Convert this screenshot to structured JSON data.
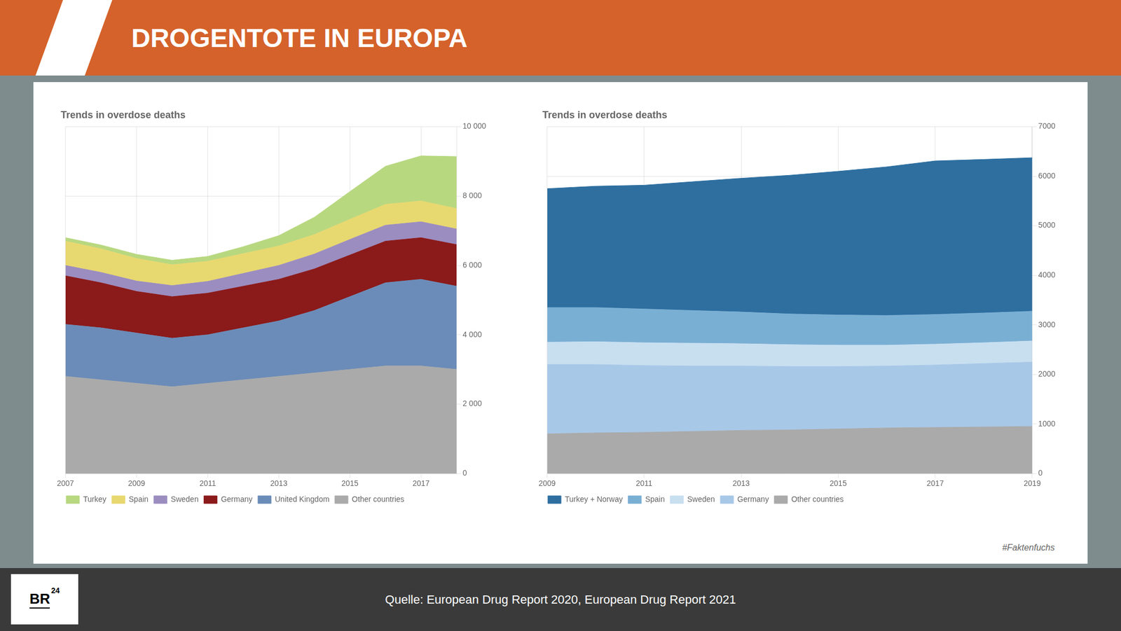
{
  "title": "DROGENTOTE IN EUROPA",
  "annotations": [
    "Quelle: European Drug Report 2020, European Drug Report 2021",
    "BR",
    "24",
    "#Faktenfuchs"
  ],
  "chart_data": [
    {
      "type": "area",
      "title": "Trends in overdose deaths",
      "stacked": true,
      "grid": true,
      "legend": "bottom",
      "x": [
        2007,
        2008,
        2009,
        2010,
        2011,
        2012,
        2013,
        2014,
        2015,
        2016,
        2017,
        2018
      ],
      "xlim": [
        2007,
        2018
      ],
      "xticks": [
        2007,
        2009,
        2011,
        2013,
        2015,
        2017
      ],
      "ylim": [
        0,
        10000
      ],
      "yticks": [
        0,
        {
          "value": 2000,
          "label": "2 000"
        },
        {
          "value": 4000,
          "label": "4 000"
        },
        {
          "value": 6000,
          "label": "6 000"
        },
        {
          "value": 8000,
          "label": "8 000"
        },
        {
          "value": 10000,
          "label": "10 000"
        }
      ],
      "series": [
        {
          "name": "Other countries",
          "color": "#AAAAAA",
          "values": [
            2800,
            2700,
            2600,
            2500,
            2600,
            2700,
            2800,
            2900,
            3000,
            3100,
            3100,
            3000
          ]
        },
        {
          "name": "United Kingdom",
          "color": "#6B8CB8",
          "values": [
            1500,
            1500,
            1450,
            1400,
            1400,
            1500,
            1600,
            1800,
            2100,
            2400,
            2500,
            2400
          ]
        },
        {
          "name": "Germany",
          "color": "#8B1A1A",
          "values": [
            1400,
            1300,
            1200,
            1200,
            1200,
            1200,
            1200,
            1200,
            1200,
            1200,
            1200,
            1200
          ]
        },
        {
          "name": "Sweden",
          "color": "#9B8DC0",
          "values": [
            300,
            300,
            300,
            320,
            340,
            370,
            400,
            430,
            450,
            460,
            460,
            450
          ]
        },
        {
          "name": "Spain",
          "color": "#E8D870",
          "values": [
            700,
            680,
            650,
            600,
            580,
            570,
            560,
            560,
            580,
            600,
            600,
            590
          ]
        },
        {
          "name": "Turkey",
          "color": "#B8D880",
          "values": [
            100,
            110,
            120,
            130,
            140,
            200,
            300,
            500,
            800,
            1100,
            1300,
            1500
          ]
        }
      ]
    },
    {
      "type": "area",
      "title": "Trends in overdose deaths",
      "stacked": true,
      "grid": true,
      "legend": "bottom",
      "x": [
        2009,
        2010,
        2011,
        2012,
        2013,
        2014,
        2015,
        2016,
        2017,
        2018,
        2019
      ],
      "xlim": [
        2009,
        2019
      ],
      "xticks": [
        2009,
        2011,
        2013,
        2015,
        2017,
        2019
      ],
      "ylim": [
        0,
        7000
      ],
      "yticks": [
        0,
        1000,
        2000,
        3000,
        4000,
        5000,
        6000,
        7000
      ],
      "series": [
        {
          "name": "Other countries",
          "color": "#AAAAAA",
          "values": [
            800,
            820,
            830,
            850,
            870,
            880,
            900,
            920,
            930,
            940,
            950
          ]
        },
        {
          "name": "Germany",
          "color": "#A8C8E8",
          "values": [
            1400,
            1380,
            1350,
            1320,
            1300,
            1280,
            1260,
            1250,
            1260,
            1280,
            1300
          ]
        },
        {
          "name": "Sweden",
          "color": "#C8DFF0",
          "values": [
            450,
            460,
            460,
            460,
            450,
            440,
            430,
            420,
            420,
            420,
            425
          ]
        },
        {
          "name": "Spain",
          "color": "#7AAFD4",
          "values": [
            700,
            690,
            680,
            660,
            640,
            620,
            610,
            600,
            600,
            600,
            600
          ]
        },
        {
          "name": "Turkey + Norway",
          "color": "#2E6FA0",
          "values": [
            2400,
            2450,
            2500,
            2600,
            2700,
            2800,
            2900,
            3000,
            3100,
            3100,
            3100
          ]
        }
      ]
    }
  ]
}
